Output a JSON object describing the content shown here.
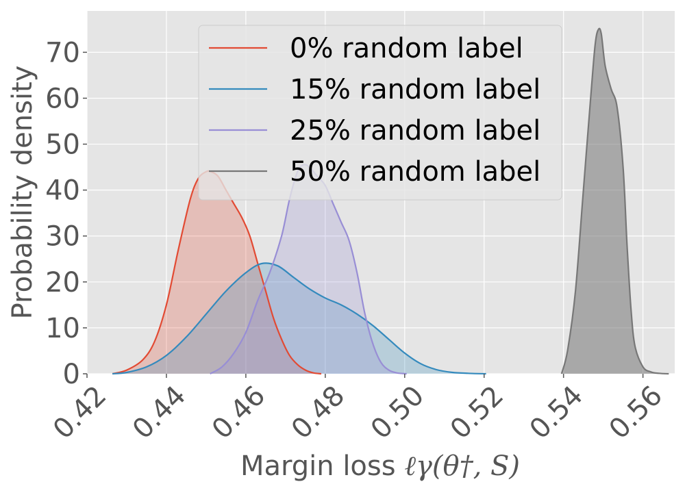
{
  "chart_data": {
    "type": "area",
    "xlabel": "Margin loss",
    "xlabel_math": "ℓγ(θ†, S)",
    "ylabel": "Probability density",
    "xlim": [
      0.42,
      0.568
    ],
    "ylim": [
      0,
      79
    ],
    "x_ticks": [
      "0.42",
      "0.44",
      "0.46",
      "0.48",
      "0.50",
      "0.52",
      "0.54",
      "0.56"
    ],
    "y_ticks": [
      "0",
      "10",
      "20",
      "30",
      "40",
      "50",
      "60",
      "70"
    ],
    "grid": true,
    "legend_position": "top-center",
    "series": [
      {
        "name": "0% random label",
        "color": "#E24A33",
        "x": [
          0.4264,
          0.43,
          0.434,
          0.437,
          0.44,
          0.443,
          0.446,
          0.448,
          0.45,
          0.4512,
          0.453,
          0.455,
          0.457,
          0.459,
          0.461,
          0.463,
          0.465,
          0.467,
          0.469,
          0.471,
          0.473,
          0.475,
          0.477,
          0.479
        ],
        "y": [
          0,
          0.8,
          3,
          7,
          15,
          27,
          38,
          42.5,
          44,
          44,
          43,
          40,
          37,
          34,
          30,
          24,
          18,
          12,
          7.5,
          4,
          2,
          0.8,
          0.2,
          0
        ]
      },
      {
        "name": "15% random label",
        "color": "#348ABD",
        "x": [
          0.4264,
          0.43,
          0.435,
          0.44,
          0.445,
          0.45,
          0.455,
          0.46,
          0.464,
          0.468,
          0.472,
          0.476,
          0.48,
          0.484,
          0.488,
          0.492,
          0.496,
          0.5,
          0.504,
          0.508,
          0.512,
          0.516,
          0.5205
        ],
        "y": [
          0,
          0.3,
          1.5,
          4,
          8,
          13,
          18,
          22,
          24,
          23.5,
          21,
          18.5,
          16.5,
          15,
          13,
          10.5,
          7.5,
          4.5,
          2.2,
          0.9,
          0.3,
          0.1,
          0
        ]
      },
      {
        "name": "25% random label",
        "color": "#988ED5",
        "x": [
          0.451,
          0.454,
          0.457,
          0.46,
          0.463,
          0.466,
          0.469,
          0.471,
          0.473,
          0.4745,
          0.476,
          0.478,
          0.48,
          0.482,
          0.484,
          0.486,
          0.488,
          0.49,
          0.492,
          0.494,
          0.496,
          0.498,
          0.5005
        ],
        "y": [
          0,
          1.5,
          4.5,
          9,
          16,
          22,
          30,
          38,
          44,
          45.5,
          45,
          43,
          41,
          37,
          33,
          29,
          22,
          13,
          6.5,
          2.5,
          0.8,
          0.2,
          0
        ]
      },
      {
        "name": "50% random label",
        "color": "#777777",
        "x": [
          0.5395,
          0.541,
          0.543,
          0.545,
          0.547,
          0.548,
          0.5488,
          0.5495,
          0.5505,
          0.552,
          0.5535,
          0.555,
          0.556,
          0.557,
          0.558,
          0.56,
          0.562,
          0.564,
          0.5665
        ],
        "y": [
          0,
          5,
          18,
          40,
          62,
          72,
          75,
          74,
          67,
          62,
          58,
          45,
          28,
          14,
          6,
          1.5,
          0.4,
          0.1,
          0
        ]
      }
    ]
  }
}
